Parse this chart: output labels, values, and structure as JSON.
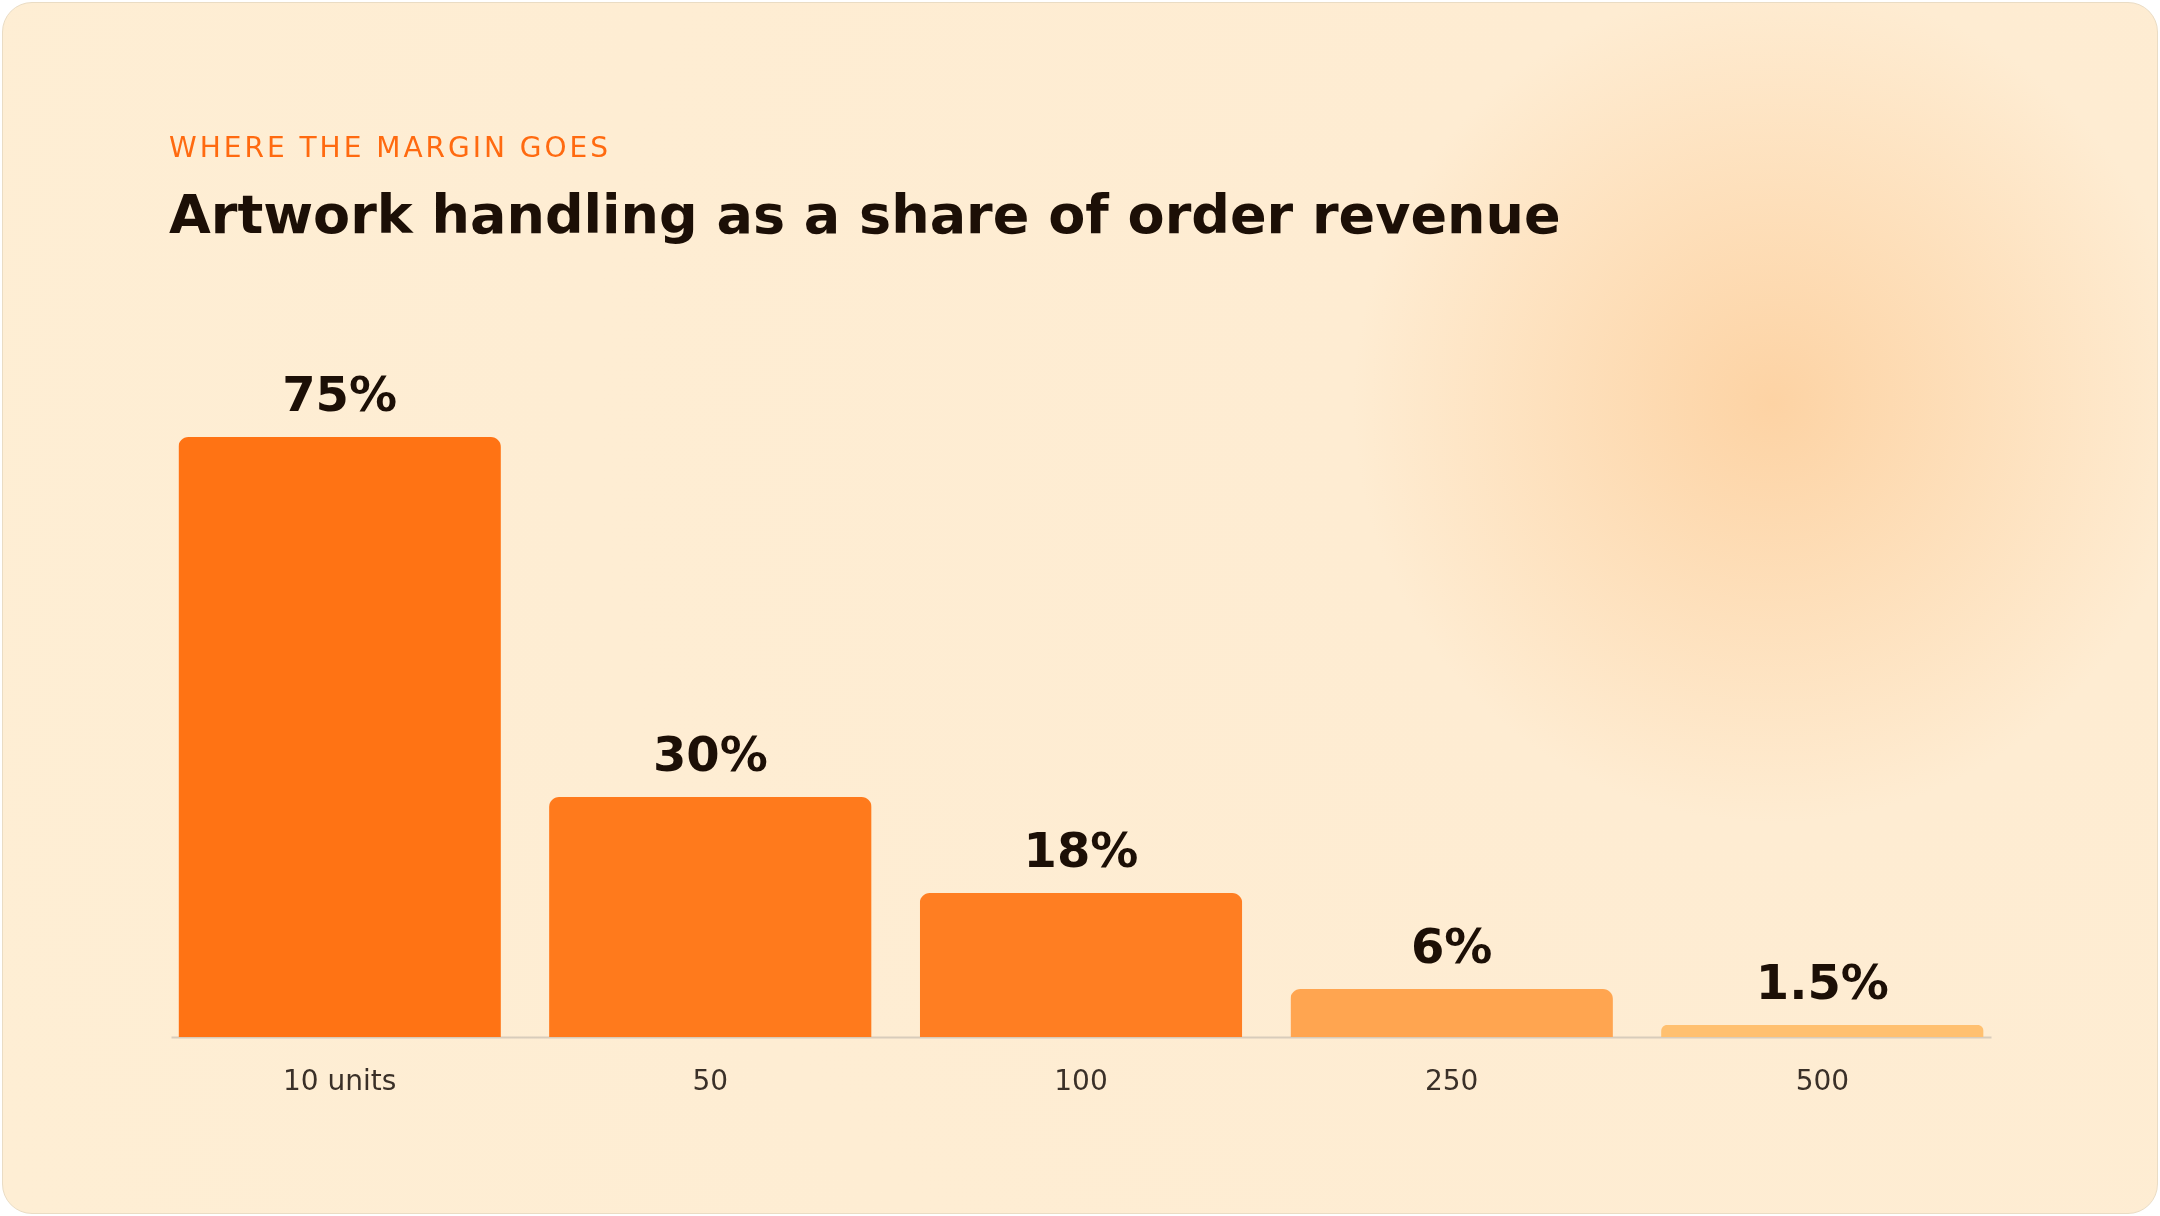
{
  "chart_data": {
    "type": "bar",
    "subtitle": "WHERE THE MARGIN GOES",
    "title": "Artwork handling as a share of order revenue",
    "categories": [
      "10 units",
      "50",
      "100",
      "250",
      "500"
    ],
    "values": [
      75,
      30,
      18,
      6,
      1.5
    ],
    "value_labels": [
      "75%",
      "30%",
      "18%",
      "6%",
      "1.5%"
    ],
    "colors": [
      "#ff7314",
      "#ff7a1c",
      "#ff7e22",
      "#ffa550",
      "#ffc070"
    ],
    "grid": false,
    "legend": false
  }
}
